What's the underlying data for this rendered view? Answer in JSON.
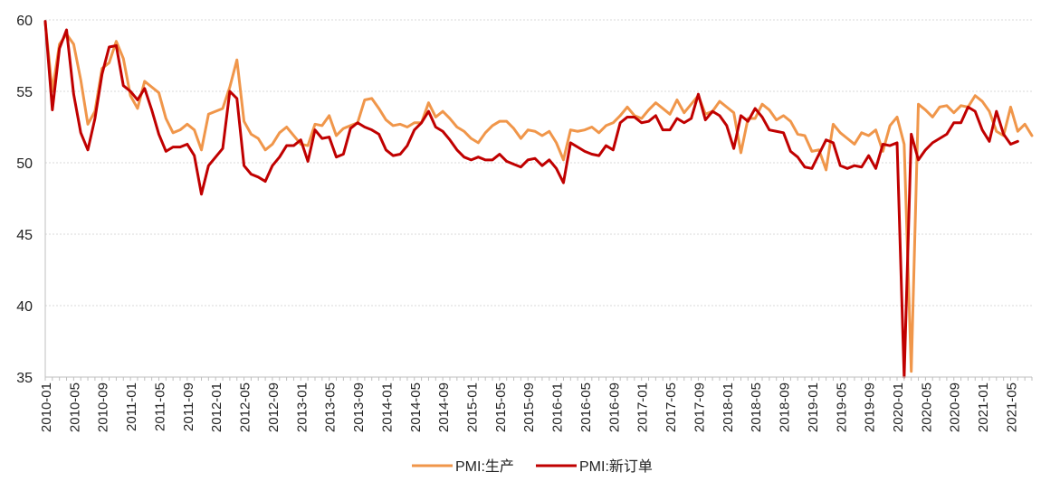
{
  "chart_data": {
    "type": "line",
    "title": "",
    "xlabel": "",
    "ylabel": "",
    "ylim": [
      35,
      60
    ],
    "yticks": [
      "35",
      "40",
      "45",
      "50",
      "55",
      "60"
    ],
    "grid": true,
    "legend_position": "bottom",
    "x_tick_labels": [
      "2010-01",
      "2010-05",
      "2010-09",
      "2011-01",
      "2011-05",
      "2011-09",
      "2012-01",
      "2012-05",
      "2012-09",
      "2013-01",
      "2013-05",
      "2013-09",
      "2014-01",
      "2014-05",
      "2014-09",
      "2015-01",
      "2015-05",
      "2015-09",
      "2016-01",
      "2016-05",
      "2016-09",
      "2017-01",
      "2017-05",
      "2017-09",
      "2018-01",
      "2018-05",
      "2018-09",
      "2019-01",
      "2019-05",
      "2019-09",
      "2020-01",
      "2020-05",
      "2020-09",
      "2021-01",
      "2021-05"
    ],
    "start": "2010-01",
    "series": [
      {
        "name": "PMI:生产",
        "color": "#F0964A",
        "values": [
          59.8,
          55.0,
          58.3,
          59.0,
          58.3,
          55.8,
          52.7,
          53.6,
          56.6,
          57.0,
          58.5,
          57.3,
          54.7,
          53.8,
          55.7,
          55.3,
          54.9,
          53.1,
          52.1,
          52.3,
          52.7,
          52.3,
          50.9,
          53.4,
          53.6,
          53.8,
          55.3,
          57.2,
          52.9,
          52.0,
          51.7,
          50.9,
          51.3,
          52.1,
          52.5,
          51.9,
          51.3,
          51.2,
          52.7,
          52.6,
          53.3,
          51.9,
          52.4,
          52.6,
          52.8,
          54.4,
          54.5,
          53.8,
          53.0,
          52.6,
          52.7,
          52.5,
          52.8,
          52.8,
          54.2,
          53.2,
          53.6,
          53.1,
          52.5,
          52.2,
          51.7,
          51.4,
          52.1,
          52.6,
          52.9,
          52.9,
          52.4,
          51.7,
          52.3,
          52.2,
          51.9,
          52.2,
          51.4,
          50.2,
          52.3,
          52.2,
          52.3,
          52.5,
          52.1,
          52.6,
          52.8,
          53.3,
          53.9,
          53.3,
          53.1,
          53.7,
          54.2,
          53.8,
          53.4,
          54.4,
          53.5,
          54.1,
          54.7,
          53.4,
          53.6,
          54.3,
          53.9,
          53.5,
          50.7,
          53.1,
          53.1,
          54.1,
          53.7,
          53.0,
          53.3,
          52.9,
          52.0,
          51.9,
          50.8,
          50.9,
          49.5,
          52.7,
          52.1,
          51.7,
          51.3,
          52.1,
          51.9,
          52.3,
          50.8,
          52.6,
          53.2,
          51.3,
          35.4,
          54.1,
          53.7,
          53.2,
          53.9,
          54.0,
          53.5,
          54.0,
          53.9,
          54.7,
          54.3,
          53.6,
          52.2,
          51.9,
          53.9,
          52.2,
          52.7,
          51.9
        ]
      },
      {
        "name": "PMI:新订单",
        "color": "#C00000",
        "values": [
          59.9,
          53.7,
          58.0,
          59.3,
          54.8,
          52.1,
          50.9,
          53.1,
          56.2,
          58.1,
          58.2,
          55.4,
          55.0,
          54.4,
          55.2,
          53.7,
          52.0,
          50.8,
          51.1,
          51.1,
          51.3,
          50.5,
          47.8,
          49.8,
          50.4,
          51.0,
          55.0,
          54.5,
          49.8,
          49.2,
          49.0,
          48.7,
          49.8,
          50.4,
          51.2,
          51.2,
          51.6,
          50.1,
          52.3,
          51.7,
          51.8,
          50.4,
          50.6,
          52.4,
          52.8,
          52.5,
          52.3,
          52.0,
          50.9,
          50.5,
          50.6,
          51.2,
          52.3,
          52.8,
          53.6,
          52.5,
          52.2,
          51.6,
          50.9,
          50.4,
          50.2,
          50.4,
          50.2,
          50.2,
          50.6,
          50.1,
          49.9,
          49.7,
          50.2,
          50.3,
          49.8,
          50.2,
          49.6,
          48.6,
          51.4,
          51.1,
          50.8,
          50.6,
          50.5,
          51.2,
          50.9,
          52.8,
          53.2,
          53.2,
          52.8,
          52.9,
          53.3,
          52.3,
          52.3,
          53.1,
          52.8,
          53.1,
          54.8,
          53.0,
          53.6,
          53.3,
          52.6,
          51.0,
          53.3,
          52.9,
          53.8,
          53.2,
          52.3,
          52.2,
          52.1,
          50.8,
          50.4,
          49.7,
          49.6,
          50.6,
          51.6,
          51.4,
          49.8,
          49.6,
          49.8,
          49.7,
          50.5,
          49.6,
          51.3,
          51.2,
          51.4,
          35.0,
          52.0,
          50.2,
          50.9,
          51.4,
          51.7,
          52.0,
          52.8,
          52.8,
          53.9,
          53.6,
          52.3,
          51.5,
          53.6,
          52.0,
          51.3,
          51.5
        ]
      }
    ]
  }
}
